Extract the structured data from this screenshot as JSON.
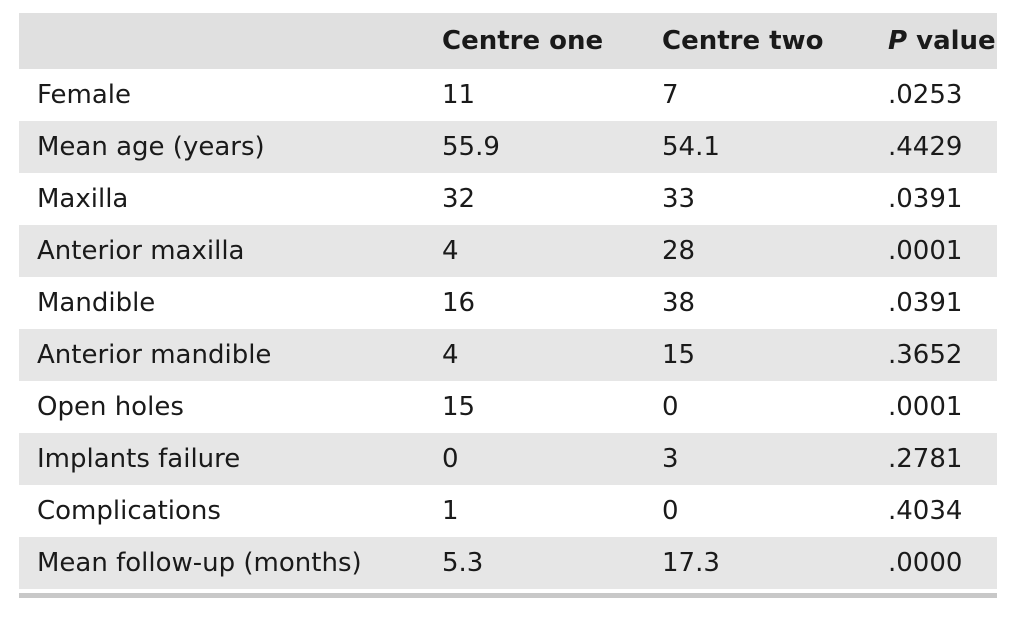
{
  "header": {
    "col0": "",
    "col1": "Centre one",
    "col2": "Centre two",
    "col3_italic": "P",
    "col3_rest": " value"
  },
  "rows": [
    {
      "label": "Female",
      "c1": "11",
      "c2": "7",
      "p": ".0253"
    },
    {
      "label": "Mean age (years)",
      "c1": "55.9",
      "c2": "54.1",
      "p": ".4429"
    },
    {
      "label": "Maxilla",
      "c1": "32",
      "c2": "33",
      "p": ".0391"
    },
    {
      "label": "Anterior maxilla",
      "c1": "4",
      "c2": "28",
      "p": ".0001"
    },
    {
      "label": "Mandible",
      "c1": "16",
      "c2": "38",
      "p": ".0391"
    },
    {
      "label": "Anterior mandible",
      "c1": "4",
      "c2": "15",
      "p": ".3652"
    },
    {
      "label": "Open holes",
      "c1": "15",
      "c2": "0",
      "p": ".0001"
    },
    {
      "label": "Implants failure",
      "c1": "0",
      "c2": "3",
      "p": ".2781"
    },
    {
      "label": "Complications",
      "c1": "1",
      "c2": "0",
      "p": ".4034"
    },
    {
      "label": "Mean follow-up (months)",
      "c1": "5.3",
      "c2": "17.3",
      "p": ".0000"
    }
  ]
}
